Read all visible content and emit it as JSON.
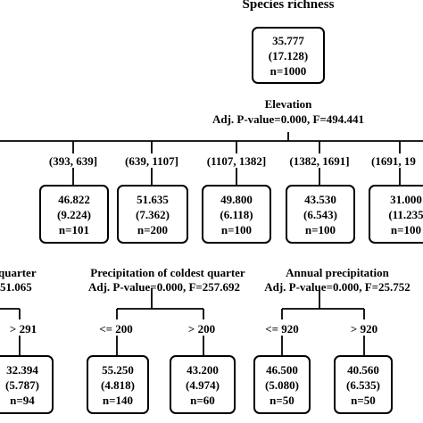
{
  "title": "Species richness",
  "root": {
    "mean": "35.777",
    "sd": "(17.128)",
    "n": "n=1000"
  },
  "root_split": {
    "variable": "Elevation",
    "stats": "Adj. P-value=0.000, F=494.441"
  },
  "elevation_ranges": [
    "(393, 639]",
    "(639, 1107]",
    "(1107, 1382]",
    "(1382, 1691]",
    "(1691, 19"
  ],
  "level1_nodes": [
    {
      "mean": "46.822",
      "sd": "(9.224)",
      "n": "n=101"
    },
    {
      "mean": "51.635",
      "sd": "(7.362)",
      "n": "n=200"
    },
    {
      "mean": "49.800",
      "sd": "(6.118)",
      "n": "n=100"
    },
    {
      "mean": "43.530",
      "sd": "(6.543)",
      "n": "n=100"
    },
    {
      "mean": "31.000",
      "sd": "(11.235",
      "n": "n=100"
    }
  ],
  "left_split": {
    "variable": "quarter",
    "stats": "51.065"
  },
  "mid_split": {
    "variable": "Precipitation of coldest quarter",
    "stats": "Adj. P-value=0.000, F=257.692"
  },
  "right_split": {
    "variable": "Annual precipitation",
    "stats": "Adj. P-value=0.000, F=25.752"
  },
  "left_branch": {
    "label": "> 291"
  },
  "mid_branches": [
    "<= 200",
    "> 200"
  ],
  "right_branches": [
    "<= 920",
    "> 920"
  ],
  "leaves": [
    {
      "mean": "32.394",
      "sd": "(5.787)",
      "n": "n=94"
    },
    {
      "mean": "55.250",
      "sd": "(4.818)",
      "n": "n=140"
    },
    {
      "mean": "43.200",
      "sd": "(4.974)",
      "n": "n=60"
    },
    {
      "mean": "46.500",
      "sd": "(5.080)",
      "n": "n=50"
    },
    {
      "mean": "40.560",
      "sd": "(6.535)",
      "n": "n=50"
    }
  ]
}
